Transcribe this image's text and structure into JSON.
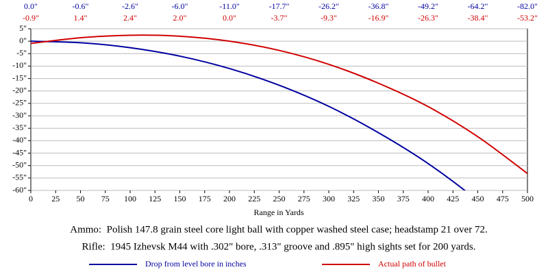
{
  "chart_data": {
    "type": "line",
    "x": [
      0,
      50,
      100,
      150,
      200,
      250,
      300,
      350,
      400,
      450,
      500
    ],
    "x_label": "Range in Yards",
    "series": [
      {
        "name": "Drop from level bore in inches",
        "color": "#0000a0",
        "values": [
          0.0,
          -0.6,
          -2.6,
          -6.0,
          -11.0,
          -17.7,
          -26.2,
          -36.8,
          -49.2,
          -64.2,
          -82.0
        ],
        "value_labels": [
          "0.0\"",
          "-0.6\"",
          "-2.6\"",
          "-6.0\"",
          "-11.0\"",
          "-17.7\"",
          "-26.2\"",
          "-36.8\"",
          "-49.2\"",
          "-64.2\"",
          "-82.0\""
        ]
      },
      {
        "name": "Actual path of bullet",
        "color": "#d00000",
        "values": [
          -0.9,
          1.4,
          2.4,
          2.0,
          0.0,
          -3.7,
          -9.3,
          -16.9,
          -26.3,
          -38.4,
          -53.2
        ],
        "value_labels": [
          "-0.9\"",
          "1.4\"",
          "2.4\"",
          "2.0\"",
          "0.0\"",
          "-3.7\"",
          "-9.3\"",
          "-16.9\"",
          "-26.3\"",
          "-38.4\"",
          "-53.2\""
        ]
      }
    ],
    "xlim": [
      0,
      500
    ],
    "xticks": [
      0,
      25,
      50,
      75,
      100,
      125,
      150,
      175,
      200,
      225,
      250,
      275,
      300,
      325,
      350,
      375,
      400,
      425,
      450,
      475,
      500
    ],
    "ylim": [
      -60,
      5
    ],
    "yticks": [
      {
        "value": 5,
        "label": "5\""
      },
      {
        "value": 0,
        "label": "0\""
      },
      {
        "value": -5,
        "label": "-5\""
      },
      {
        "value": -10,
        "label": "-10\""
      },
      {
        "value": -15,
        "label": "-15\""
      },
      {
        "value": -20,
        "label": "-20\""
      },
      {
        "value": -25,
        "label": "-25\""
      },
      {
        "value": -30,
        "label": "-30\""
      },
      {
        "value": -35,
        "label": "-35\""
      },
      {
        "value": -40,
        "label": "-40\""
      },
      {
        "value": -45,
        "label": "-45\""
      },
      {
        "value": -50,
        "label": "-50\""
      },
      {
        "value": -55,
        "label": "-55\""
      },
      {
        "value": -60,
        "label": "-60\""
      }
    ],
    "grid": true,
    "annotations": [
      "Ammo:  Polish 147.8 grain steel core light ball with copper washed steel case; headstamp 21 over 72.",
      "Rifle:  1945 Izhevsk M44 with .302\" bore, .313\" groove and .895\" high sights set for 200 yards."
    ]
  }
}
